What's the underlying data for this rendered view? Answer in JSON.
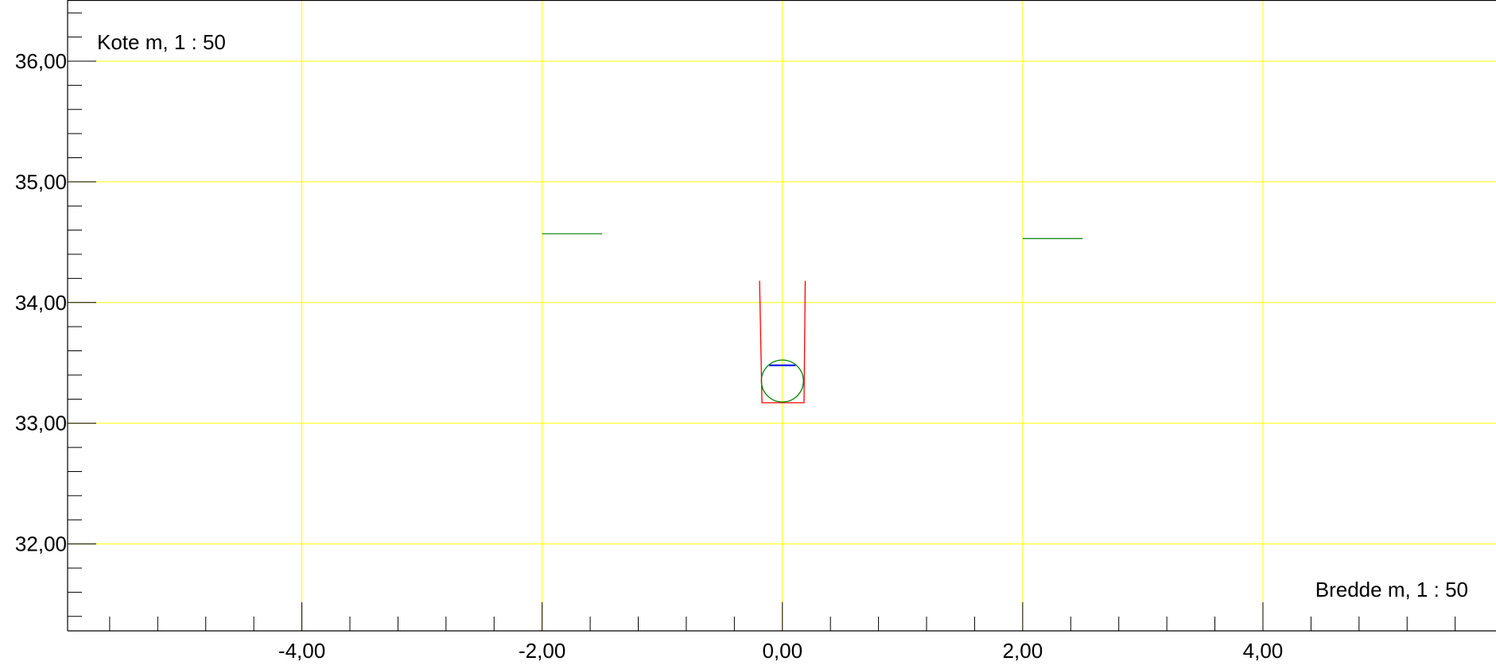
{
  "chart_data": {
    "type": "line",
    "title": "",
    "ylabel": "Kote m, 1 : 50",
    "xlabel": "Bredde m, 1 : 50",
    "xlim": [
      -5.95,
      5.94
    ],
    "ylim": [
      31.28,
      36.5
    ],
    "x_ticks": [
      {
        "value": -4,
        "label": "-4,00"
      },
      {
        "value": -2,
        "label": "-2,00"
      },
      {
        "value": 0,
        "label": "0,00"
      },
      {
        "value": 2,
        "label": "2,00"
      },
      {
        "value": 4,
        "label": "4,00"
      }
    ],
    "y_ticks": [
      {
        "value": 32,
        "label": "32,00"
      },
      {
        "value": 33,
        "label": "33,00"
      },
      {
        "value": 34,
        "label": "34,00"
      },
      {
        "value": 35,
        "label": "35,00"
      },
      {
        "value": 36,
        "label": "36,00"
      }
    ],
    "x_minor_step": 0.4,
    "y_minor_step": 0.2,
    "grid": true,
    "colors": {
      "grid": "#ffff00",
      "axis": "#000000",
      "trench": "#ff0000",
      "pipe": "#008000",
      "terrain": "#008000",
      "water": "#0000ff"
    },
    "series": [
      {
        "points": [
          [
            -2.0,
            34.57
          ],
          [
            -1.5,
            34.57
          ]
        ]
      },
      {
        "points": [
          [
            2.0,
            34.53
          ],
          [
            2.5,
            34.53
          ]
        ]
      },
      {
        "points": [
          [
            -0.19,
            34.18
          ],
          [
            -0.17,
            33.17
          ],
          [
            0.18,
            33.17
          ],
          [
            0.19,
            34.18
          ]
        ]
      },
      {
        "points": [
          [
            -0.11,
            33.48
          ],
          [
            0.11,
            33.48
          ]
        ]
      }
    ],
    "circles": [
      {
        "cx": 0.0,
        "cy": 33.35,
        "r": 0.175
      }
    ]
  }
}
